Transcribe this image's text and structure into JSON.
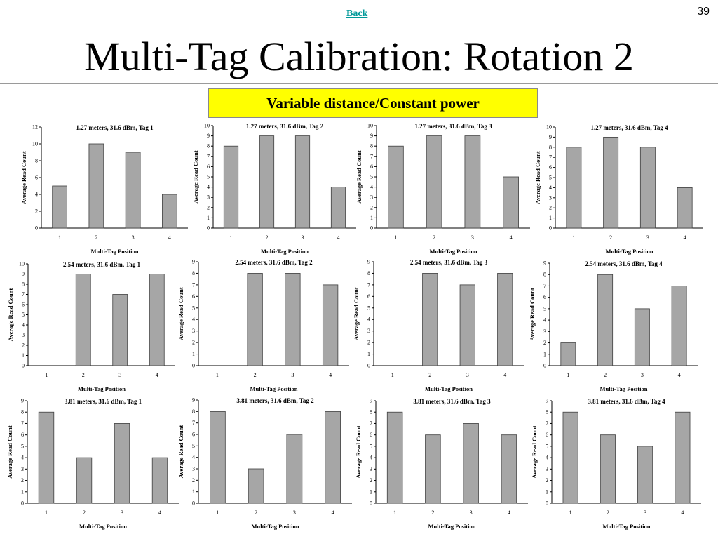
{
  "header": {
    "back_label": "Back",
    "page_number": "39",
    "title": "Multi-Tag Calibration: Rotation 2",
    "banner": "Variable distance/Constant power"
  },
  "colors": {
    "bar_fill": "#a6a6a6",
    "bar_stroke": "#404040",
    "banner_bg": "#ffff00",
    "back_link": "#009999"
  },
  "chart_data": [
    {
      "type": "bar",
      "title": "1.27 meters, 31.6 dBm, Tag 1",
      "categories": [
        "1",
        "2",
        "3",
        "4"
      ],
      "values": [
        5,
        10,
        9,
        4
      ],
      "xlabel": "Multi-Tag Position",
      "ylabel": "Average Read Count",
      "ylim": [
        0,
        12
      ],
      "yticks": [
        0,
        2,
        4,
        6,
        8,
        10,
        12
      ]
    },
    {
      "type": "bar",
      "title": "1.27 meters, 31.6 dBm, Tag 2",
      "categories": [
        "1",
        "2",
        "3",
        "4"
      ],
      "values": [
        8,
        9,
        9,
        4
      ],
      "xlabel": "Multi-Tag Position",
      "ylabel": "Average Read Count",
      "ylim": [
        0,
        10
      ],
      "yticks": [
        0,
        1,
        2,
        3,
        4,
        5,
        6,
        7,
        8,
        9,
        10
      ]
    },
    {
      "type": "bar",
      "title": "1.27 meters, 31.6 dBm, Tag 3",
      "categories": [
        "1",
        "2",
        "3",
        "4"
      ],
      "values": [
        8,
        9,
        9,
        5
      ],
      "xlabel": "Multi-Tag Position",
      "ylabel": "Average Read Count",
      "ylim": [
        0,
        10
      ],
      "yticks": [
        0,
        1,
        2,
        3,
        4,
        5,
        6,
        7,
        8,
        9,
        10
      ]
    },
    {
      "type": "bar",
      "title": "1.27 meters, 31.6 dBm, Tag 4",
      "categories": [
        "1",
        "2",
        "3",
        "4"
      ],
      "values": [
        8,
        9,
        8,
        4
      ],
      "xlabel": "Multi-Tag Position",
      "ylabel": "Average Read Count",
      "ylim": [
        0,
        10
      ],
      "yticks": [
        0,
        1,
        2,
        3,
        4,
        5,
        6,
        7,
        8,
        9,
        10
      ]
    },
    {
      "type": "bar",
      "title": "2.54 meters, 31.6 dBm, Tag 1",
      "categories": [
        "1",
        "2",
        "3",
        "4"
      ],
      "values": [
        0,
        9,
        7,
        9
      ],
      "xlabel": "Multi-Tag Position",
      "ylabel": "Average Read Count",
      "ylim": [
        0,
        10
      ],
      "yticks": [
        0,
        1,
        2,
        3,
        4,
        5,
        6,
        7,
        8,
        9,
        10
      ]
    },
    {
      "type": "bar",
      "title": "2.54 meters, 31.6 dBm, Tag 2",
      "categories": [
        "1",
        "2",
        "3",
        "4"
      ],
      "values": [
        0,
        8,
        8,
        7
      ],
      "xlabel": "Multi-Tag Position",
      "ylabel": "Average Read Count",
      "ylim": [
        0,
        9
      ],
      "yticks": [
        0,
        1,
        2,
        3,
        4,
        5,
        6,
        7,
        8,
        9
      ]
    },
    {
      "type": "bar",
      "title": "2.54 meters, 31.6 dBm, Tag 3",
      "categories": [
        "1",
        "2",
        "3",
        "4"
      ],
      "values": [
        0,
        8,
        7,
        8
      ],
      "xlabel": "Multi-Tag Position",
      "ylabel": "Average Read Count",
      "ylim": [
        0,
        9
      ],
      "yticks": [
        0,
        1,
        2,
        3,
        4,
        5,
        6,
        7,
        8,
        9
      ]
    },
    {
      "type": "bar",
      "title": "2.54 meters, 31.6 dBm, Tag 4",
      "categories": [
        "1",
        "2",
        "3",
        "4"
      ],
      "values": [
        2,
        8,
        5,
        7
      ],
      "xlabel": "Multi-Tag Position",
      "ylabel": "Average Read Count",
      "ylim": [
        0,
        9
      ],
      "yticks": [
        0,
        1,
        2,
        3,
        4,
        5,
        6,
        7,
        8,
        9
      ]
    },
    {
      "type": "bar",
      "title": "3.81 meters, 31.6 dBm, Tag 1",
      "categories": [
        "1",
        "2",
        "3",
        "4"
      ],
      "values": [
        8,
        4,
        7,
        4
      ],
      "xlabel": "Multi-Tag Position",
      "ylabel": "Average Read Count",
      "ylim": [
        0,
        9
      ],
      "yticks": [
        0,
        1,
        2,
        3,
        4,
        5,
        6,
        7,
        8,
        9
      ]
    },
    {
      "type": "bar",
      "title": "3.81 meters, 31.6 dBm, Tag 2",
      "categories": [
        "1",
        "2",
        "3",
        "4"
      ],
      "values": [
        8,
        3,
        6,
        8
      ],
      "xlabel": "Multi-Tag Position",
      "ylabel": "Average Read Count",
      "ylim": [
        0,
        9
      ],
      "yticks": [
        0,
        1,
        2,
        3,
        4,
        5,
        6,
        7,
        8,
        9
      ]
    },
    {
      "type": "bar",
      "title": "3.81 meters, 31.6 dBm, Tag 3",
      "categories": [
        "1",
        "2",
        "3",
        "4"
      ],
      "values": [
        8,
        6,
        7,
        6
      ],
      "xlabel": "Multi-Tag Position",
      "ylabel": "Average Read Count",
      "ylim": [
        0,
        9
      ],
      "yticks": [
        0,
        1,
        2,
        3,
        4,
        5,
        6,
        7,
        8,
        9
      ]
    },
    {
      "type": "bar",
      "title": "3.81 meters, 31.6 dBm, Tag 4",
      "categories": [
        "1",
        "2",
        "3",
        "4"
      ],
      "values": [
        8,
        6,
        5,
        8
      ],
      "xlabel": "Multi-Tag Position",
      "ylabel": "Average Read Count",
      "ylim": [
        0,
        9
      ],
      "yticks": [
        0,
        1,
        2,
        3,
        4,
        5,
        6,
        7,
        8,
        9
      ]
    }
  ]
}
